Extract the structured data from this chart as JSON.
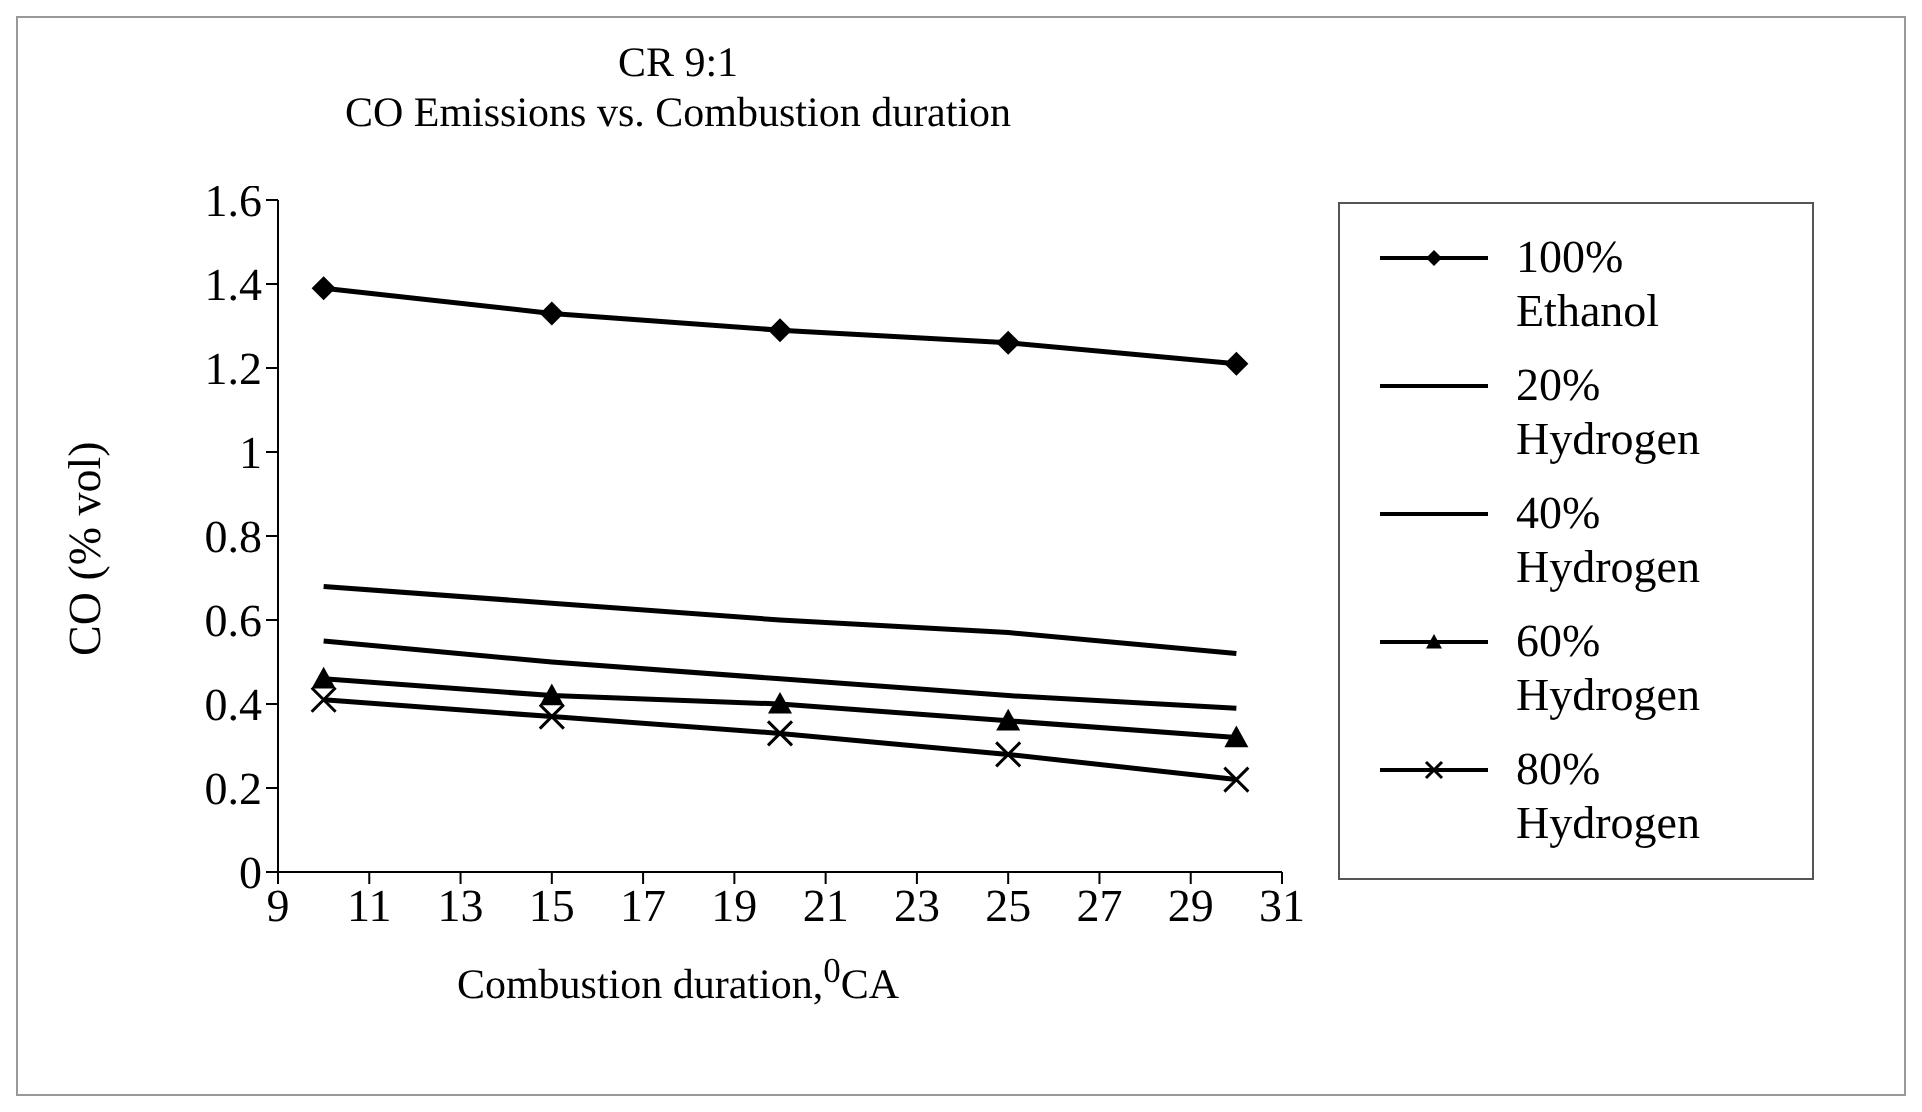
{
  "chart_data": {
    "type": "line",
    "title": "CR 9:1",
    "subtitle": "CO Emissions vs. Combustion duration",
    "xlabel": "Combustion duration,$^{0}$CA",
    "ylabel": "CO (% vol)",
    "x": [
      10,
      15,
      20,
      25,
      30
    ],
    "series": [
      {
        "name": "100% Ethanol",
        "color": "#000000",
        "marker": "diamond",
        "values": [
          1.39,
          1.33,
          1.29,
          1.26,
          1.21
        ]
      },
      {
        "name": "20% Hydrogen",
        "color": "#000000",
        "marker": "none",
        "values": [
          0.68,
          0.64,
          0.6,
          0.57,
          0.52
        ]
      },
      {
        "name": "40% Hydrogen",
        "color": "#000000",
        "marker": "none",
        "values": [
          0.55,
          0.5,
          0.46,
          0.42,
          0.39
        ]
      },
      {
        "name": "60% Hydrogen",
        "color": "#000000",
        "marker": "triangle",
        "values": [
          0.46,
          0.42,
          0.4,
          0.36,
          0.32
        ]
      },
      {
        "name": "80% Hydrogen",
        "color": "#000000",
        "marker": "cross",
        "values": [
          0.41,
          0.37,
          0.33,
          0.28,
          0.22
        ]
      }
    ],
    "xlim": [
      9,
      31
    ],
    "xticks": [
      9,
      11,
      13,
      15,
      17,
      19,
      21,
      23,
      25,
      27,
      29,
      31
    ],
    "ylim": [
      0,
      1.6
    ],
    "yticks": [
      0,
      0.2,
      0.4,
      0.6,
      0.8,
      1,
      1.2,
      1.4,
      1.6
    ],
    "grid": false,
    "legend": "right",
    "line_style": "solid"
  }
}
